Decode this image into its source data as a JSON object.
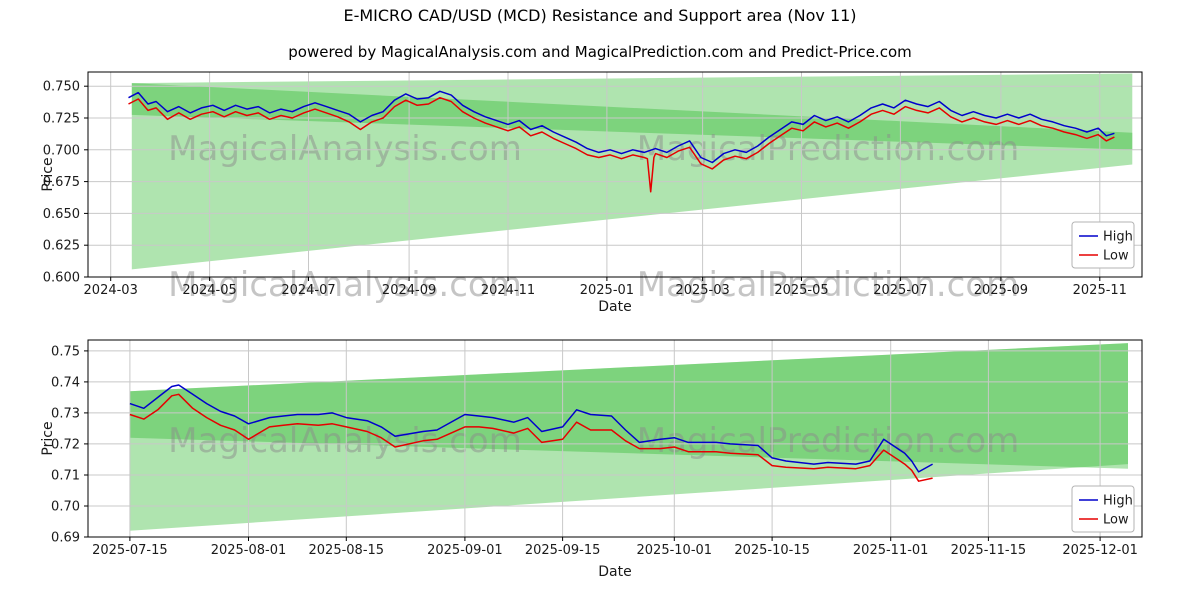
{
  "page": {
    "title": "E-MICRO CAD/USD (MCD) Resistance and Support area (Nov 11)",
    "subtitle": "powered by MagicalAnalysis.com and MagicalPrediction.com and Predict-Price.com",
    "background": "#ffffff"
  },
  "watermark": {
    "left_text": "MagicalAnalysis.com",
    "right_text": "MagicalPrediction.com",
    "color": "#8c8c8c"
  },
  "colors": {
    "high": "#0000cc",
    "low": "#e60000",
    "band": "#2eb82e",
    "grid": "#c8c8c8",
    "spine": "#000000"
  },
  "chart_data": [
    {
      "type": "line",
      "name": "long-term-chart",
      "xlabel": "Date",
      "ylabel": "Price",
      "ylim": [
        0.6,
        0.7612
      ],
      "xlim": [
        "2024-02-16",
        "2025-11-27"
      ],
      "grid": true,
      "yticks": [
        0.6,
        0.625,
        0.65,
        0.675,
        0.7,
        0.725,
        0.75
      ],
      "ytick_labels": [
        "0.600",
        "0.625",
        "0.650",
        "0.675",
        "0.700",
        "0.725",
        "0.750"
      ],
      "xticks": [
        "2024-03-01",
        "2024-05-01",
        "2024-07-01",
        "2024-09-01",
        "2024-11-01",
        "2025-01-01",
        "2025-03-01",
        "2025-05-01",
        "2025-07-01",
        "2025-09-01",
        "2025-11-01"
      ],
      "xtick_labels": [
        "2024-03",
        "2024-05",
        "2024-07",
        "2024-09",
        "2024-11",
        "2025-01",
        "2025-03",
        "2025-05",
        "2025-07",
        "2025-09",
        "2025-11"
      ],
      "legend": {
        "loc": "lower right",
        "entries": [
          "High",
          "Low"
        ]
      },
      "bands": [
        {
          "name": "support-area",
          "color": "#2eb82e",
          "opacity": 0.38,
          "points": [
            [
              "2024-03-14",
              0.606
            ],
            [
              "2024-03-14",
              0.7525
            ],
            [
              "2025-11-21",
              0.7135
            ],
            [
              "2025-11-21",
              0.6885
            ]
          ]
        },
        {
          "name": "resistance-area",
          "color": "#2eb82e",
          "opacity": 0.38,
          "points": [
            [
              "2024-03-14",
              0.7275
            ],
            [
              "2024-03-14",
              0.7525
            ],
            [
              "2025-11-21",
              0.76
            ],
            [
              "2025-11-21",
              0.7
            ]
          ]
        }
      ],
      "series": [
        {
          "name": "High",
          "color": "#0000cc",
          "x": [
            "2024-03-12",
            "2024-03-18",
            "2024-03-24",
            "2024-03-29",
            "2024-04-05",
            "2024-04-12",
            "2024-04-19",
            "2024-04-26",
            "2024-05-03",
            "2024-05-10",
            "2024-05-17",
            "2024-05-24",
            "2024-05-31",
            "2024-06-07",
            "2024-06-14",
            "2024-06-21",
            "2024-06-28",
            "2024-07-05",
            "2024-07-12",
            "2024-07-19",
            "2024-07-26",
            "2024-08-02",
            "2024-08-09",
            "2024-08-16",
            "2024-08-23",
            "2024-08-30",
            "2024-09-06",
            "2024-09-13",
            "2024-09-20",
            "2024-09-27",
            "2024-10-04",
            "2024-10-11",
            "2024-10-18",
            "2024-10-25",
            "2024-11-01",
            "2024-11-08",
            "2024-11-15",
            "2024-11-22",
            "2024-11-29",
            "2024-12-06",
            "2024-12-13",
            "2024-12-20",
            "2024-12-27",
            "2025-01-03",
            "2025-01-10",
            "2025-01-17",
            "2025-01-24",
            "2025-01-31",
            "2025-02-07",
            "2025-02-14",
            "2025-02-21",
            "2025-02-28",
            "2025-03-07",
            "2025-03-14",
            "2025-03-21",
            "2025-03-28",
            "2025-04-04",
            "2025-04-11",
            "2025-04-18",
            "2025-04-25",
            "2025-05-02",
            "2025-05-09",
            "2025-05-16",
            "2025-05-23",
            "2025-05-30",
            "2025-06-06",
            "2025-06-13",
            "2025-06-20",
            "2025-06-27",
            "2025-07-04",
            "2025-07-11",
            "2025-07-18",
            "2025-07-25",
            "2025-08-01",
            "2025-08-08",
            "2025-08-15",
            "2025-08-22",
            "2025-08-29",
            "2025-09-05",
            "2025-09-12",
            "2025-09-19",
            "2025-09-26",
            "2025-10-03",
            "2025-10-10",
            "2025-10-17",
            "2025-10-24",
            "2025-10-31",
            "2025-11-05",
            "2025-11-10"
          ],
          "y": [
            0.741,
            0.745,
            0.736,
            0.738,
            0.73,
            0.734,
            0.729,
            0.733,
            0.735,
            0.731,
            0.735,
            0.732,
            0.734,
            0.729,
            0.732,
            0.73,
            0.734,
            0.737,
            0.734,
            0.731,
            0.728,
            0.722,
            0.727,
            0.73,
            0.739,
            0.744,
            0.74,
            0.741,
            0.746,
            0.743,
            0.735,
            0.73,
            0.726,
            0.723,
            0.72,
            0.723,
            0.716,
            0.719,
            0.714,
            0.71,
            0.706,
            0.701,
            0.698,
            0.7,
            0.697,
            0.7,
            0.698,
            0.701,
            0.698,
            0.703,
            0.707,
            0.694,
            0.69,
            0.697,
            0.7,
            0.698,
            0.703,
            0.71,
            0.716,
            0.722,
            0.72,
            0.727,
            0.723,
            0.726,
            0.722,
            0.727,
            0.733,
            0.736,
            0.733,
            0.739,
            0.736,
            0.734,
            0.738,
            0.731,
            0.727,
            0.73,
            0.727,
            0.725,
            0.728,
            0.725,
            0.728,
            0.724,
            0.722,
            0.719,
            0.717,
            0.714,
            0.717,
            0.711,
            0.713
          ]
        },
        {
          "name": "Low",
          "color": "#e60000",
          "x": [
            "2024-03-12",
            "2024-03-18",
            "2024-03-24",
            "2024-03-29",
            "2024-04-05",
            "2024-04-12",
            "2024-04-19",
            "2024-04-26",
            "2024-05-03",
            "2024-05-10",
            "2024-05-17",
            "2024-05-24",
            "2024-05-31",
            "2024-06-07",
            "2024-06-14",
            "2024-06-21",
            "2024-06-28",
            "2024-07-05",
            "2024-07-12",
            "2024-07-19",
            "2024-07-26",
            "2024-08-02",
            "2024-08-09",
            "2024-08-16",
            "2024-08-23",
            "2024-08-30",
            "2024-09-06",
            "2024-09-13",
            "2024-09-20",
            "2024-09-27",
            "2024-10-04",
            "2024-10-11",
            "2024-10-18",
            "2024-10-25",
            "2024-11-01",
            "2024-11-08",
            "2024-11-15",
            "2024-11-22",
            "2024-11-29",
            "2024-12-06",
            "2024-12-13",
            "2024-12-20",
            "2024-12-27",
            "2025-01-03",
            "2025-01-10",
            "2025-01-17",
            "2025-01-24",
            "2025-01-26",
            "2025-01-28",
            "2025-01-30",
            "2025-01-31",
            "2025-02-07",
            "2025-02-14",
            "2025-02-21",
            "2025-02-28",
            "2025-03-07",
            "2025-03-14",
            "2025-03-21",
            "2025-03-28",
            "2025-04-04",
            "2025-04-11",
            "2025-04-18",
            "2025-04-25",
            "2025-05-02",
            "2025-05-09",
            "2025-05-16",
            "2025-05-23",
            "2025-05-30",
            "2025-06-06",
            "2025-06-13",
            "2025-06-20",
            "2025-06-27",
            "2025-07-04",
            "2025-07-11",
            "2025-07-18",
            "2025-07-25",
            "2025-08-01",
            "2025-08-08",
            "2025-08-15",
            "2025-08-22",
            "2025-08-29",
            "2025-09-05",
            "2025-09-12",
            "2025-09-19",
            "2025-09-26",
            "2025-10-03",
            "2025-10-10",
            "2025-10-17",
            "2025-10-24",
            "2025-10-31",
            "2025-11-05",
            "2025-11-10"
          ],
          "y": [
            0.736,
            0.74,
            0.731,
            0.733,
            0.724,
            0.729,
            0.724,
            0.728,
            0.73,
            0.726,
            0.73,
            0.727,
            0.729,
            0.724,
            0.727,
            0.725,
            0.729,
            0.732,
            0.729,
            0.726,
            0.722,
            0.716,
            0.722,
            0.725,
            0.734,
            0.739,
            0.735,
            0.736,
            0.741,
            0.738,
            0.73,
            0.725,
            0.721,
            0.718,
            0.715,
            0.718,
            0.711,
            0.714,
            0.709,
            0.705,
            0.701,
            0.696,
            0.694,
            0.696,
            0.693,
            0.696,
            0.694,
            0.693,
            0.667,
            0.694,
            0.697,
            0.694,
            0.699,
            0.702,
            0.689,
            0.685,
            0.692,
            0.695,
            0.693,
            0.698,
            0.705,
            0.711,
            0.717,
            0.715,
            0.722,
            0.718,
            0.721,
            0.717,
            0.722,
            0.728,
            0.731,
            0.728,
            0.734,
            0.731,
            0.729,
            0.733,
            0.726,
            0.722,
            0.725,
            0.722,
            0.72,
            0.723,
            0.72,
            0.723,
            0.719,
            0.717,
            0.714,
            0.712,
            0.709,
            0.712,
            0.707,
            0.71
          ]
        }
      ]
    },
    {
      "type": "line",
      "name": "recent-chart",
      "xlabel": "Date",
      "ylabel": "Price",
      "ylim": [
        0.69,
        0.7535
      ],
      "xlim": [
        "2025-07-09",
        "2025-12-07"
      ],
      "grid": true,
      "yticks": [
        0.69,
        0.7,
        0.71,
        0.72,
        0.73,
        0.74,
        0.75
      ],
      "ytick_labels": [
        "0.69",
        "0.70",
        "0.71",
        "0.72",
        "0.73",
        "0.74",
        "0.75"
      ],
      "xticks": [
        "2025-07-15",
        "2025-08-01",
        "2025-08-15",
        "2025-09-01",
        "2025-09-15",
        "2025-10-01",
        "2025-10-15",
        "2025-11-01",
        "2025-11-15",
        "2025-12-01"
      ],
      "xtick_labels": [
        "2025-07-15",
        "2025-08-01",
        "2025-08-15",
        "2025-09-01",
        "2025-09-15",
        "2025-10-01",
        "2025-10-15",
        "2025-11-01",
        "2025-11-15",
        "2025-12-01"
      ],
      "legend": {
        "loc": "lower right",
        "entries": [
          "High",
          "Low"
        ]
      },
      "x": [
        "2025-07-15",
        "2025-07-17",
        "2025-07-19",
        "2025-07-21",
        "2025-07-22",
        "2025-07-24",
        "2025-07-26",
        "2025-07-28",
        "2025-07-30",
        "2025-08-01",
        "2025-08-04",
        "2025-08-06",
        "2025-08-08",
        "2025-08-11",
        "2025-08-13",
        "2025-08-15",
        "2025-08-18",
        "2025-08-20",
        "2025-08-22",
        "2025-08-26",
        "2025-08-28",
        "2025-09-01",
        "2025-09-03",
        "2025-09-05",
        "2025-09-08",
        "2025-09-10",
        "2025-09-12",
        "2025-09-15",
        "2025-09-17",
        "2025-09-19",
        "2025-09-22",
        "2025-09-24",
        "2025-09-26",
        "2025-09-29",
        "2025-10-01",
        "2025-10-03",
        "2025-10-07",
        "2025-10-09",
        "2025-10-13",
        "2025-10-15",
        "2025-10-17",
        "2025-10-21",
        "2025-10-23",
        "2025-10-27",
        "2025-10-29",
        "2025-10-31",
        "2025-11-03",
        "2025-11-04",
        "2025-11-05",
        "2025-11-07"
      ],
      "bands": [
        {
          "name": "support-area",
          "color": "#2eb82e",
          "opacity": 0.38,
          "points": [
            [
              "2025-07-15",
              0.692
            ],
            [
              "2025-07-15",
              0.737
            ],
            [
              "2025-12-05",
              0.7525
            ],
            [
              "2025-12-05",
              0.7135
            ]
          ]
        },
        {
          "name": "resistance-area",
          "color": "#2eb82e",
          "opacity": 0.38,
          "points": [
            [
              "2025-07-15",
              0.722
            ],
            [
              "2025-07-15",
              0.737
            ],
            [
              "2025-12-05",
              0.7525
            ],
            [
              "2025-12-05",
              0.712
            ]
          ]
        }
      ],
      "series": [
        {
          "name": "High",
          "color": "#0000cc",
          "y": [
            0.733,
            0.7315,
            0.735,
            0.7385,
            0.739,
            0.736,
            0.733,
            0.7305,
            0.729,
            0.7265,
            0.7285,
            0.729,
            0.7295,
            0.7295,
            0.73,
            0.7285,
            0.7275,
            0.7255,
            0.7225,
            0.724,
            0.7245,
            0.7295,
            0.729,
            0.7285,
            0.727,
            0.7285,
            0.724,
            0.7255,
            0.731,
            0.7295,
            0.729,
            0.7245,
            0.7205,
            0.7215,
            0.722,
            0.7205,
            0.7205,
            0.72,
            0.7195,
            0.7155,
            0.7145,
            0.7135,
            0.714,
            0.7135,
            0.7145,
            0.7215,
            0.717,
            0.7145,
            0.711,
            0.7135
          ]
        },
        {
          "name": "Low",
          "color": "#e60000",
          "y": [
            0.7295,
            0.728,
            0.731,
            0.7355,
            0.736,
            0.7315,
            0.7285,
            0.726,
            0.7245,
            0.7215,
            0.7255,
            0.726,
            0.7265,
            0.726,
            0.7265,
            0.7255,
            0.724,
            0.722,
            0.719,
            0.721,
            0.7215,
            0.7255,
            0.7255,
            0.725,
            0.7235,
            0.725,
            0.7205,
            0.7215,
            0.727,
            0.7245,
            0.7245,
            0.721,
            0.7185,
            0.7185,
            0.719,
            0.7175,
            0.7175,
            0.717,
            0.7165,
            0.713,
            0.7125,
            0.712,
            0.7125,
            0.712,
            0.713,
            0.718,
            0.7135,
            0.7115,
            0.708,
            0.709
          ]
        }
      ]
    }
  ]
}
